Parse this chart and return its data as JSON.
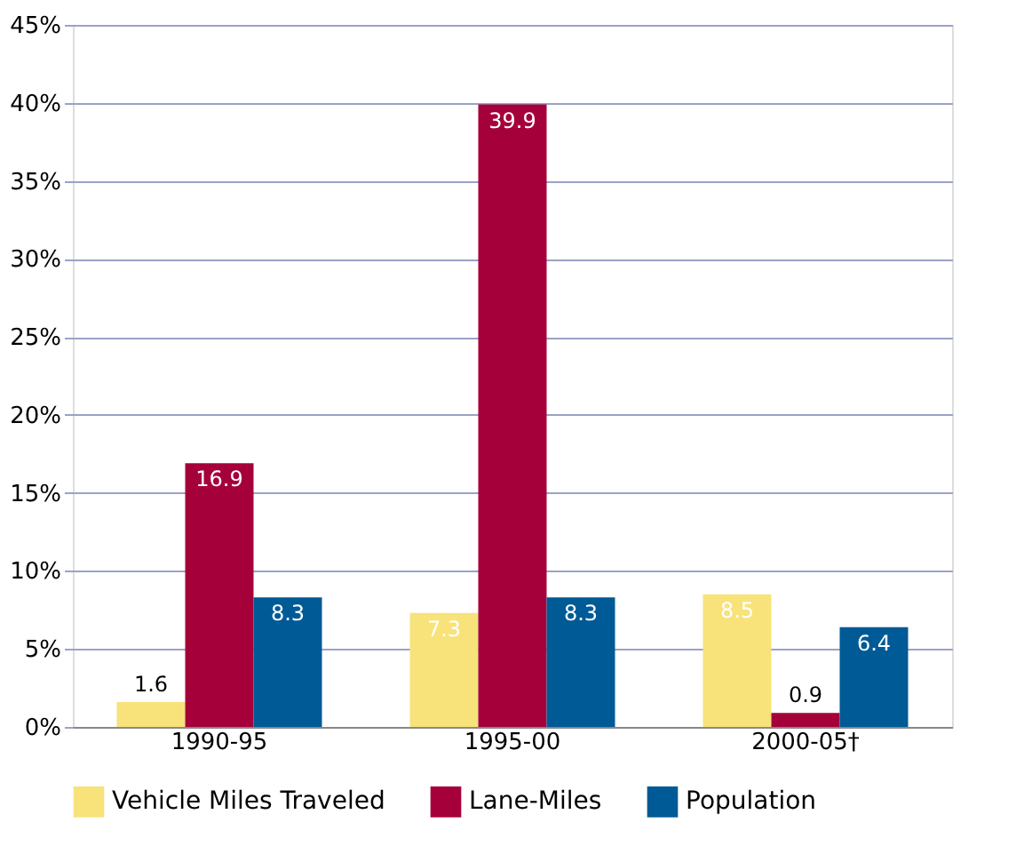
{
  "chart_data": {
    "type": "bar",
    "categories": [
      "1990-95",
      "1995-00",
      "2000-05†"
    ],
    "series": [
      {
        "name": "Vehicle Miles Traveled",
        "color": "#f8e27a",
        "values": [
          1.6,
          7.3,
          8.5
        ]
      },
      {
        "name": "Lane-Miles",
        "color": "#a6003a",
        "values": [
          16.9,
          39.9,
          0.9
        ]
      },
      {
        "name": "Population",
        "color": "#005a96",
        "values": [
          8.3,
          8.3,
          6.4
        ]
      }
    ],
    "ylim": [
      0,
      45
    ],
    "yticks": [
      {
        "value": 0,
        "label": "0%"
      },
      {
        "value": 5,
        "label": "5%"
      },
      {
        "value": 10,
        "label": "10%"
      },
      {
        "value": 15,
        "label": "15%"
      },
      {
        "value": 20,
        "label": "20%"
      },
      {
        "value": 25,
        "label": "25%"
      },
      {
        "value": 30,
        "label": "30%"
      },
      {
        "value": 35,
        "label": "35%"
      },
      {
        "value": 40,
        "label": "40%"
      },
      {
        "value": 45,
        "label": "45%"
      }
    ],
    "grid": "y",
    "legend": "bottom",
    "data_labels": true
  }
}
